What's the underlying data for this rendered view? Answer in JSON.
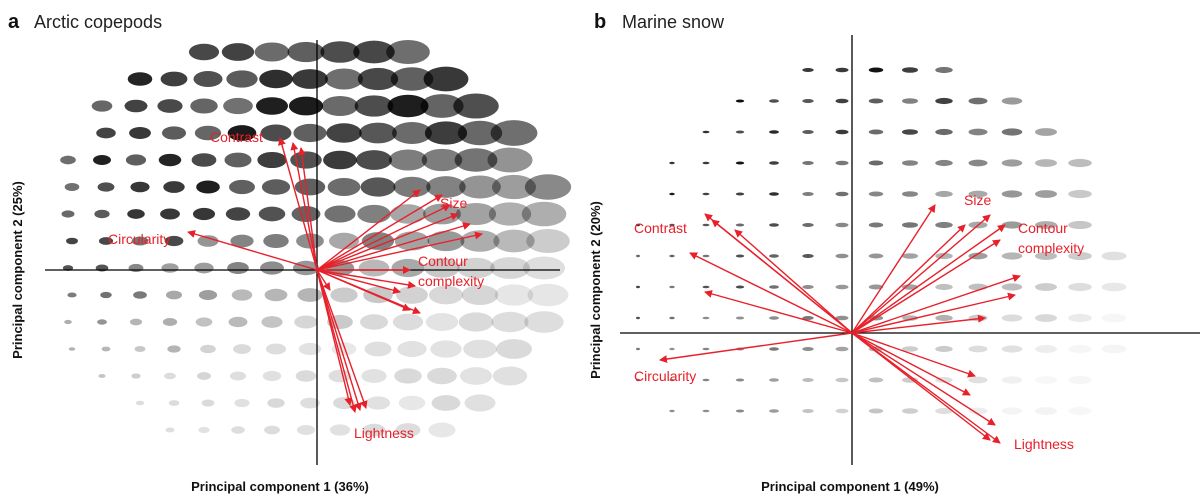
{
  "panels": [
    {
      "letter": "a",
      "title": "Arctic copepods",
      "x_label": "Principal component 1 (36%)",
      "y_label": "Principal component 2 (25%)",
      "features": {
        "contrast": "Contrast",
        "size": "Size",
        "circularity": "Circularity",
        "contour_complexity": [
          "Contour",
          "complexity"
        ],
        "lightness": "Lightness"
      }
    },
    {
      "letter": "b",
      "title": "Marine snow",
      "x_label": "Principal component 1 (49%)",
      "y_label": "Principal component 2 (20%)",
      "features": {
        "contrast": "Contrast",
        "size": "Size",
        "circularity": "Circularity",
        "contour_complexity": [
          "Contour",
          "complexity"
        ],
        "lightness": "Lightness"
      }
    }
  ]
}
